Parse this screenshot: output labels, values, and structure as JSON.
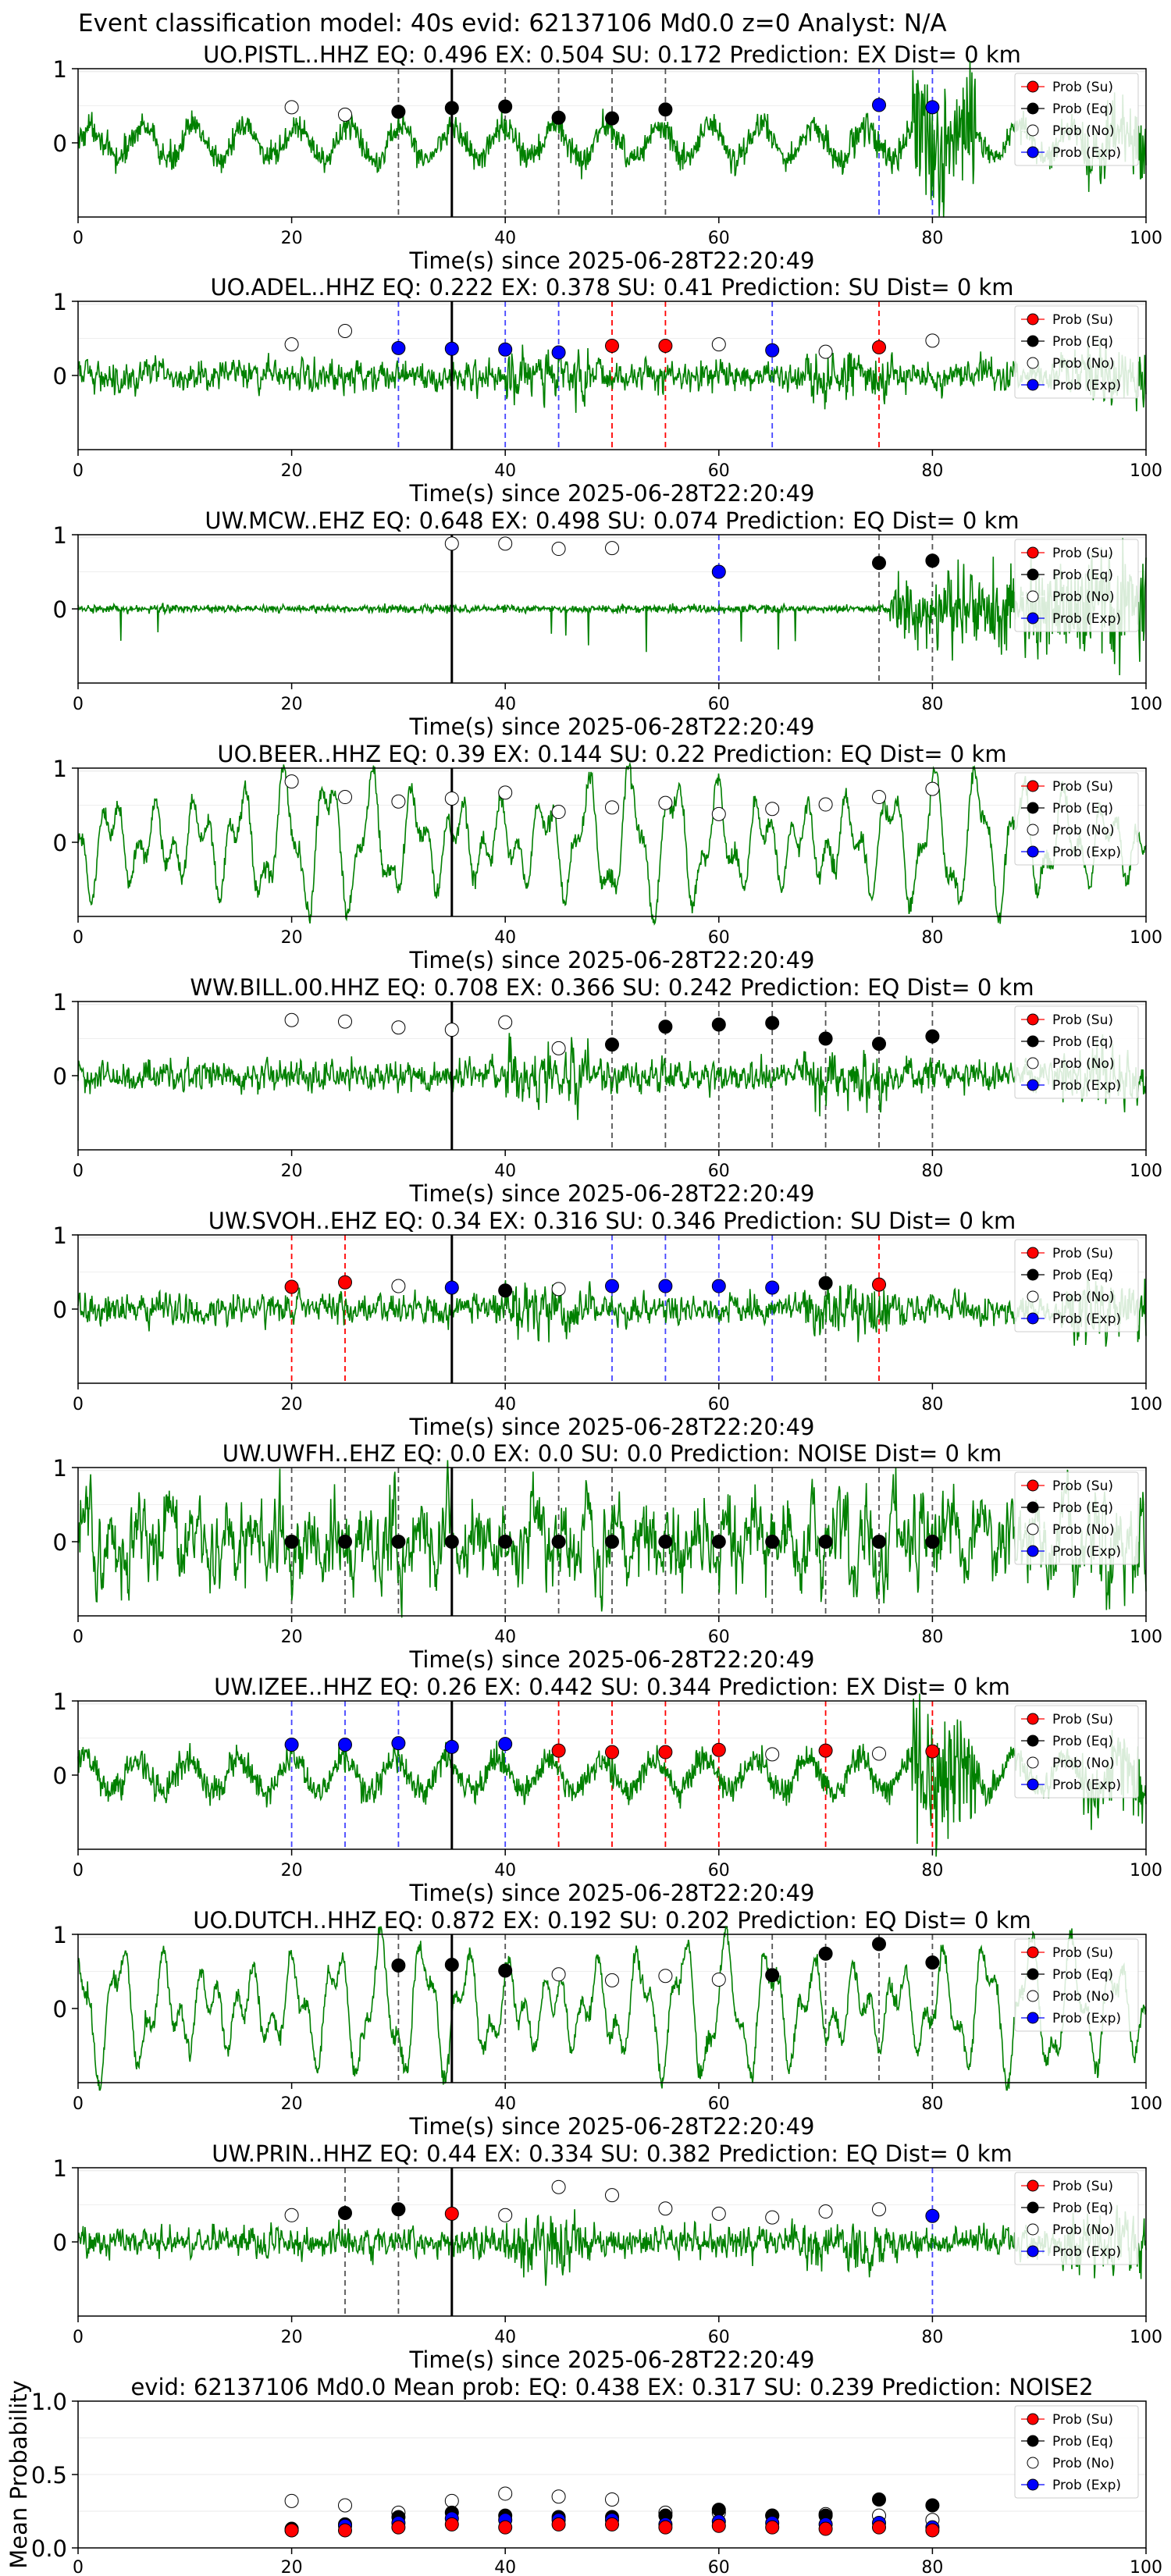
{
  "figure": {
    "title": "Event classification model: 40s evid: 62137106 Md0.0 z=0 Analyst: N/A"
  },
  "legend_entries": [
    "Prob (Su)",
    "Prob (Eq)",
    "Prob (No)",
    "Prob (Exp)"
  ],
  "colors": {
    "su": "#ff0000",
    "eq": "#000000",
    "no": "#ffffff",
    "exp": "#0000ff",
    "trace": "#008000",
    "line_su": "#ff0000",
    "line_eq": "#555555",
    "line_exp": "#4444ff",
    "origin_line": "#000000"
  },
  "chart_data": [
    {
      "type": "line",
      "title": "UO.PISTL..HHZ   EQ: 0.496  EX: 0.504  SU: 0.172   Prediction: EX    Dist= 0 km",
      "xlabel": "Time(s) since 2025-06-28T22:20:49",
      "xlim": [
        0,
        100
      ],
      "ylim": [
        -1,
        1
      ],
      "xticks": [
        0,
        20,
        40,
        60,
        80,
        100
      ],
      "yticks": [
        0,
        1
      ],
      "origin_time": 35,
      "trace_style": "mixed",
      "points": [
        {
          "x": 20,
          "y": 0.48,
          "cls": "no"
        },
        {
          "x": 25,
          "y": 0.38,
          "cls": "no"
        },
        {
          "x": 30,
          "y": 0.42,
          "cls": "eq"
        },
        {
          "x": 35,
          "y": 0.47,
          "cls": "eq"
        },
        {
          "x": 40,
          "y": 0.49,
          "cls": "eq"
        },
        {
          "x": 45,
          "y": 0.34,
          "cls": "eq"
        },
        {
          "x": 50,
          "y": 0.33,
          "cls": "eq"
        },
        {
          "x": 55,
          "y": 0.45,
          "cls": "eq"
        },
        {
          "x": 75,
          "y": 0.51,
          "cls": "exp"
        },
        {
          "x": 80,
          "y": 0.48,
          "cls": "exp"
        }
      ]
    },
    {
      "type": "line",
      "title": "UO.ADEL..HHZ   EQ: 0.222  EX: 0.378  SU: 0.41   Prediction: SU    Dist= 0 km",
      "xlabel": "Time(s) since 2025-06-28T22:20:49",
      "xlim": [
        0,
        100
      ],
      "ylim": [
        -1,
        1
      ],
      "xticks": [
        0,
        20,
        40,
        60,
        80,
        100
      ],
      "yticks": [
        0,
        1
      ],
      "origin_time": 35,
      "trace_style": "noisy",
      "points": [
        {
          "x": 20,
          "y": 0.42,
          "cls": "no"
        },
        {
          "x": 25,
          "y": 0.6,
          "cls": "no"
        },
        {
          "x": 30,
          "y": 0.37,
          "cls": "exp"
        },
        {
          "x": 35,
          "y": 0.36,
          "cls": "exp"
        },
        {
          "x": 40,
          "y": 0.35,
          "cls": "exp"
        },
        {
          "x": 45,
          "y": 0.31,
          "cls": "exp"
        },
        {
          "x": 50,
          "y": 0.4,
          "cls": "su"
        },
        {
          "x": 55,
          "y": 0.4,
          "cls": "su"
        },
        {
          "x": 60,
          "y": 0.42,
          "cls": "no"
        },
        {
          "x": 65,
          "y": 0.34,
          "cls": "exp"
        },
        {
          "x": 70,
          "y": 0.32,
          "cls": "no"
        },
        {
          "x": 75,
          "y": 0.38,
          "cls": "su"
        },
        {
          "x": 80,
          "y": 0.47,
          "cls": "no"
        }
      ]
    },
    {
      "type": "line",
      "title": "UW.MCW..EHZ   EQ: 0.648  EX: 0.498  SU: 0.074   Prediction: EQ    Dist= 0 km",
      "xlabel": "Time(s) since 2025-06-28T22:20:49",
      "xlim": [
        0,
        100
      ],
      "ylim": [
        -1,
        1
      ],
      "xticks": [
        0,
        20,
        40,
        60,
        80,
        100
      ],
      "yticks": [
        0,
        1
      ],
      "origin_time": 35,
      "trace_style": "quiet",
      "points": [
        {
          "x": 35,
          "y": 0.88,
          "cls": "no"
        },
        {
          "x": 40,
          "y": 0.88,
          "cls": "no"
        },
        {
          "x": 45,
          "y": 0.81,
          "cls": "no"
        },
        {
          "x": 50,
          "y": 0.82,
          "cls": "no"
        },
        {
          "x": 60,
          "y": 0.5,
          "cls": "exp"
        },
        {
          "x": 75,
          "y": 0.62,
          "cls": "eq"
        },
        {
          "x": 80,
          "y": 0.65,
          "cls": "eq"
        }
      ]
    },
    {
      "type": "line",
      "title": "UO.BEER..HHZ   EQ: 0.39  EX: 0.144  SU: 0.22   Prediction: EQ    Dist= 0 km",
      "xlabel": "Time(s) since 2025-06-28T22:20:49",
      "xlim": [
        0,
        100
      ],
      "ylim": [
        -1,
        1
      ],
      "xticks": [
        0,
        20,
        40,
        60,
        80,
        100
      ],
      "yticks": [
        0,
        1
      ],
      "origin_time": 35,
      "trace_style": "wave",
      "points": [
        {
          "x": 20,
          "y": 0.82,
          "cls": "no"
        },
        {
          "x": 25,
          "y": 0.61,
          "cls": "no"
        },
        {
          "x": 30,
          "y": 0.55,
          "cls": "no"
        },
        {
          "x": 35,
          "y": 0.59,
          "cls": "no"
        },
        {
          "x": 40,
          "y": 0.67,
          "cls": "no"
        },
        {
          "x": 45,
          "y": 0.41,
          "cls": "no"
        },
        {
          "x": 50,
          "y": 0.47,
          "cls": "no"
        },
        {
          "x": 55,
          "y": 0.53,
          "cls": "no"
        },
        {
          "x": 60,
          "y": 0.38,
          "cls": "no"
        },
        {
          "x": 65,
          "y": 0.45,
          "cls": "no"
        },
        {
          "x": 70,
          "y": 0.51,
          "cls": "no"
        },
        {
          "x": 75,
          "y": 0.61,
          "cls": "no"
        },
        {
          "x": 80,
          "y": 0.72,
          "cls": "no"
        }
      ]
    },
    {
      "type": "line",
      "title": "WW.BILL.00.HHZ   EQ: 0.708  EX: 0.366  SU: 0.242   Prediction: EQ    Dist= 0 km",
      "xlabel": "Time(s) since 2025-06-28T22:20:49",
      "xlim": [
        0,
        100
      ],
      "ylim": [
        -1,
        1
      ],
      "xticks": [
        0,
        20,
        40,
        60,
        80,
        100
      ],
      "yticks": [
        0,
        1
      ],
      "origin_time": 35,
      "trace_style": "noisy",
      "points": [
        {
          "x": 20,
          "y": 0.75,
          "cls": "no"
        },
        {
          "x": 25,
          "y": 0.73,
          "cls": "no"
        },
        {
          "x": 30,
          "y": 0.65,
          "cls": "no"
        },
        {
          "x": 35,
          "y": 0.62,
          "cls": "no"
        },
        {
          "x": 40,
          "y": 0.72,
          "cls": "no"
        },
        {
          "x": 45,
          "y": 0.37,
          "cls": "no"
        },
        {
          "x": 50,
          "y": 0.42,
          "cls": "eq"
        },
        {
          "x": 55,
          "y": 0.66,
          "cls": "eq"
        },
        {
          "x": 60,
          "y": 0.69,
          "cls": "eq"
        },
        {
          "x": 65,
          "y": 0.71,
          "cls": "eq"
        },
        {
          "x": 70,
          "y": 0.5,
          "cls": "eq"
        },
        {
          "x": 75,
          "y": 0.43,
          "cls": "eq"
        },
        {
          "x": 80,
          "y": 0.53,
          "cls": "eq"
        }
      ]
    },
    {
      "type": "line",
      "title": "UW.SVOH..EHZ   EQ: 0.34  EX: 0.316  SU: 0.346   Prediction: SU    Dist= 0 km",
      "xlabel": "Time(s) since 2025-06-28T22:20:49",
      "xlim": [
        0,
        100
      ],
      "ylim": [
        -1,
        1
      ],
      "xticks": [
        0,
        20,
        40,
        60,
        80,
        100
      ],
      "yticks": [
        0,
        1
      ],
      "origin_time": 35,
      "trace_style": "noisy",
      "points": [
        {
          "x": 20,
          "y": 0.3,
          "cls": "su"
        },
        {
          "x": 25,
          "y": 0.36,
          "cls": "su"
        },
        {
          "x": 30,
          "y": 0.31,
          "cls": "no"
        },
        {
          "x": 35,
          "y": 0.29,
          "cls": "exp"
        },
        {
          "x": 40,
          "y": 0.25,
          "cls": "eq"
        },
        {
          "x": 45,
          "y": 0.27,
          "cls": "no"
        },
        {
          "x": 50,
          "y": 0.31,
          "cls": "exp"
        },
        {
          "x": 55,
          "y": 0.31,
          "cls": "exp"
        },
        {
          "x": 60,
          "y": 0.31,
          "cls": "exp"
        },
        {
          "x": 65,
          "y": 0.29,
          "cls": "exp"
        },
        {
          "x": 70,
          "y": 0.35,
          "cls": "eq"
        },
        {
          "x": 75,
          "y": 0.33,
          "cls": "su"
        }
      ]
    },
    {
      "type": "line",
      "title": "UW.UWFH..EHZ   EQ: 0.0  EX: 0.0  SU: 0.0   Prediction: NOISE    Dist= 0 km",
      "xlabel": "Time(s) since 2025-06-28T22:20:49",
      "xlim": [
        0,
        100
      ],
      "ylim": [
        -1,
        1
      ],
      "xticks": [
        0,
        20,
        40,
        60,
        80,
        100
      ],
      "yticks": [
        0,
        1
      ],
      "origin_time": 35,
      "trace_style": "dense",
      "points": [
        {
          "x": 20,
          "y": 0,
          "cls": "eq"
        },
        {
          "x": 25,
          "y": 0,
          "cls": "eq"
        },
        {
          "x": 30,
          "y": 0,
          "cls": "eq"
        },
        {
          "x": 35,
          "y": 0,
          "cls": "eq"
        },
        {
          "x": 40,
          "y": 0,
          "cls": "eq"
        },
        {
          "x": 45,
          "y": 0,
          "cls": "eq"
        },
        {
          "x": 50,
          "y": 0,
          "cls": "eq"
        },
        {
          "x": 55,
          "y": 0,
          "cls": "eq"
        },
        {
          "x": 60,
          "y": 0,
          "cls": "eq"
        },
        {
          "x": 65,
          "y": 0,
          "cls": "eq"
        },
        {
          "x": 70,
          "y": 0,
          "cls": "eq"
        },
        {
          "x": 75,
          "y": 0,
          "cls": "eq"
        },
        {
          "x": 80,
          "y": 0,
          "cls": "eq"
        }
      ]
    },
    {
      "type": "line",
      "title": "UW.IZEE..HHZ   EQ: 0.26  EX: 0.442  SU: 0.344   Prediction: EX    Dist= 0 km",
      "xlabel": "Time(s) since 2025-06-28T22:20:49",
      "xlim": [
        0,
        100
      ],
      "ylim": [
        -1,
        1
      ],
      "xticks": [
        0,
        20,
        40,
        60,
        80,
        100
      ],
      "yticks": [
        0,
        1
      ],
      "origin_time": 35,
      "trace_style": "mixed",
      "points": [
        {
          "x": 20,
          "y": 0.41,
          "cls": "exp"
        },
        {
          "x": 25,
          "y": 0.41,
          "cls": "exp"
        },
        {
          "x": 30,
          "y": 0.43,
          "cls": "exp"
        },
        {
          "x": 35,
          "y": 0.38,
          "cls": "exp"
        },
        {
          "x": 40,
          "y": 0.42,
          "cls": "exp"
        },
        {
          "x": 45,
          "y": 0.33,
          "cls": "su"
        },
        {
          "x": 50,
          "y": 0.31,
          "cls": "su"
        },
        {
          "x": 55,
          "y": 0.31,
          "cls": "su"
        },
        {
          "x": 60,
          "y": 0.34,
          "cls": "su"
        },
        {
          "x": 65,
          "y": 0.28,
          "cls": "no"
        },
        {
          "x": 70,
          "y": 0.33,
          "cls": "su"
        },
        {
          "x": 75,
          "y": 0.29,
          "cls": "no"
        },
        {
          "x": 80,
          "y": 0.32,
          "cls": "su"
        }
      ]
    },
    {
      "type": "line",
      "title": "UO.DUTCH..HHZ   EQ: 0.872  EX: 0.192  SU: 0.202   Prediction: EQ    Dist= 0 km",
      "xlabel": "Time(s) since 2025-06-28T22:20:49",
      "xlim": [
        0,
        100
      ],
      "ylim": [
        -1,
        1
      ],
      "xticks": [
        0,
        20,
        40,
        60,
        80,
        100
      ],
      "yticks": [
        0,
        1
      ],
      "origin_time": 35,
      "trace_style": "wave",
      "points": [
        {
          "x": 30,
          "y": 0.58,
          "cls": "eq"
        },
        {
          "x": 35,
          "y": 0.59,
          "cls": "eq"
        },
        {
          "x": 40,
          "y": 0.51,
          "cls": "eq"
        },
        {
          "x": 45,
          "y": 0.46,
          "cls": "no"
        },
        {
          "x": 50,
          "y": 0.38,
          "cls": "no"
        },
        {
          "x": 55,
          "y": 0.44,
          "cls": "no"
        },
        {
          "x": 60,
          "y": 0.39,
          "cls": "no"
        },
        {
          "x": 65,
          "y": 0.45,
          "cls": "eq"
        },
        {
          "x": 70,
          "y": 0.74,
          "cls": "eq"
        },
        {
          "x": 75,
          "y": 0.87,
          "cls": "eq"
        },
        {
          "x": 80,
          "y": 0.62,
          "cls": "eq"
        }
      ]
    },
    {
      "type": "line",
      "title": "UW.PRIN..HHZ   EQ: 0.44  EX: 0.334  SU: 0.382   Prediction: EQ    Dist= 0 km",
      "xlabel": "Time(s) since 2025-06-28T22:20:49",
      "xlim": [
        0,
        100
      ],
      "ylim": [
        -1,
        1
      ],
      "xticks": [
        0,
        20,
        40,
        60,
        80,
        100
      ],
      "yticks": [
        0,
        1
      ],
      "origin_time": 35,
      "trace_style": "noisy",
      "points": [
        {
          "x": 20,
          "y": 0.36,
          "cls": "no"
        },
        {
          "x": 25,
          "y": 0.39,
          "cls": "eq"
        },
        {
          "x": 30,
          "y": 0.44,
          "cls": "eq"
        },
        {
          "x": 35,
          "y": 0.38,
          "cls": "su"
        },
        {
          "x": 40,
          "y": 0.36,
          "cls": "no"
        },
        {
          "x": 45,
          "y": 0.74,
          "cls": "no"
        },
        {
          "x": 50,
          "y": 0.63,
          "cls": "no"
        },
        {
          "x": 55,
          "y": 0.45,
          "cls": "no"
        },
        {
          "x": 60,
          "y": 0.38,
          "cls": "no"
        },
        {
          "x": 65,
          "y": 0.33,
          "cls": "no"
        },
        {
          "x": 70,
          "y": 0.41,
          "cls": "no"
        },
        {
          "x": 75,
          "y": 0.44,
          "cls": "no"
        },
        {
          "x": 80,
          "y": 0.35,
          "cls": "exp"
        }
      ]
    },
    {
      "type": "scatter",
      "title": "evid: 62137106  Md0.0   Mean prob:   EQ: 0.438  EX: 0.317  SU: 0.239   Prediction: NOISE2",
      "xlabel": "",
      "ylabel": "Mean Probability",
      "xlim": [
        0,
        100
      ],
      "ylim": [
        0,
        1
      ],
      "xticks": [
        0,
        20,
        40,
        60,
        80,
        100
      ],
      "yticks": [
        0.0,
        0.5,
        1.0
      ],
      "x": [
        20,
        25,
        30,
        35,
        40,
        45,
        50,
        55,
        60,
        65,
        70,
        75,
        80
      ],
      "series": [
        {
          "cls": "no",
          "values": [
            0.32,
            0.29,
            0.24,
            0.32,
            0.37,
            0.35,
            0.33,
            0.24,
            0.24,
            0.22,
            0.23,
            0.22,
            0.19
          ]
        },
        {
          "cls": "eq",
          "values": [
            0.13,
            0.16,
            0.21,
            0.24,
            0.22,
            0.21,
            0.21,
            0.22,
            0.26,
            0.22,
            0.22,
            0.33,
            0.29
          ]
        },
        {
          "cls": "exp",
          "values": [
            0.12,
            0.15,
            0.17,
            0.2,
            0.19,
            0.19,
            0.19,
            0.16,
            0.18,
            0.17,
            0.16,
            0.17,
            0.14
          ]
        },
        {
          "cls": "su",
          "values": [
            0.12,
            0.12,
            0.14,
            0.16,
            0.14,
            0.16,
            0.16,
            0.14,
            0.15,
            0.14,
            0.13,
            0.14,
            0.12
          ]
        }
      ]
    }
  ]
}
